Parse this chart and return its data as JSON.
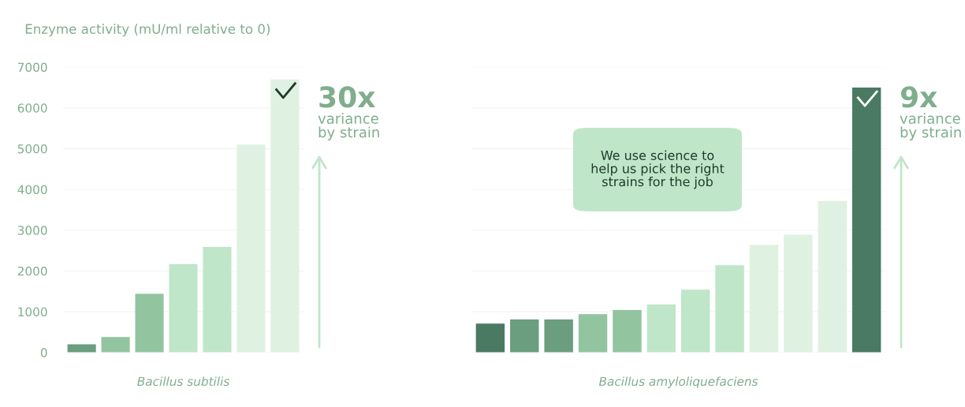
{
  "chart_data": [
    {
      "type": "bar",
      "ylabel": "Enzyme activity (mU/ml relative to 0)",
      "xlabel": "Bacillus subtilis",
      "categories": [
        null,
        null,
        null,
        null,
        null,
        null,
        null
      ],
      "values": [
        200,
        380,
        1440,
        2170,
        2590,
        5100,
        6700
      ],
      "colors": [
        "#6a9e7e",
        "#92c4a0",
        "#92c4a0",
        "#bfe6c8",
        "#bfe6c8",
        "#dff1e0",
        "#dff1e0"
      ],
      "ylim": [
        0,
        7000
      ],
      "yticks": [
        0,
        1000,
        2000,
        3000,
        4000,
        5000,
        6000,
        7000
      ],
      "grid": "y",
      "tick_labels": "y",
      "annotations": [
        "30x",
        "variance\nby strain"
      ]
    },
    {
      "type": "bar",
      "xlabel": "Bacillus amyloliquefaciens",
      "categories": [
        null,
        null,
        null,
        null,
        null,
        null,
        null,
        null,
        null,
        null,
        null,
        null
      ],
      "values": [
        710,
        810,
        810,
        940,
        1040,
        1180,
        1540,
        2140,
        2640,
        2890,
        3720,
        6500
      ],
      "colors": [
        "#4a7a62",
        "#6a9e7e",
        "#6a9e7e",
        "#92c4a0",
        "#92c4a0",
        "#bfe6c8",
        "#bfe6c8",
        "#bfe6c8",
        "#dff1e0",
        "#dff1e0",
        "#dff1e0",
        "#4a7a62"
      ],
      "ylim": [
        0,
        7000
      ],
      "yticks": [
        0,
        1000,
        2000,
        3000,
        4000,
        5000,
        6000,
        7000
      ],
      "grid": "y",
      "tick_labels": false,
      "annotations": [
        "9x",
        "variance\nby strain",
        "We use science to\nhelp us pick the right\nstrains for the job"
      ]
    }
  ]
}
